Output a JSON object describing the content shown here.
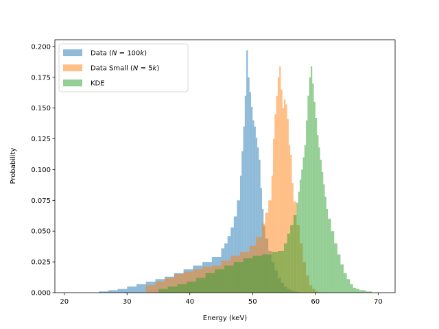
{
  "chart_data": {
    "type": "histogram",
    "xlabel": "Energy (keV)",
    "ylabel": "Probability",
    "xlim": [
      18.5,
      72.7
    ],
    "ylim": [
      0,
      0.2055
    ],
    "xticks": [
      20,
      30,
      40,
      50,
      60,
      70
    ],
    "xtick_labels": [
      "20",
      "30",
      "40",
      "50",
      "60",
      "70"
    ],
    "yticks": [
      0.0,
      0.025,
      0.05,
      0.075,
      0.1,
      0.125,
      0.15,
      0.175,
      0.2
    ],
    "ytick_labels": [
      "0.000",
      "0.025",
      "0.050",
      "0.075",
      "0.100",
      "0.125",
      "0.150",
      "0.175",
      "0.200"
    ],
    "grid": false,
    "legend_position": "upper-left",
    "series": [
      {
        "name": "Data (N = 100k)",
        "name_parts": [
          "Data (",
          "N",
          " = 100",
          "k",
          ")"
        ],
        "color": "#1f77b4",
        "alpha": 0.5,
        "bins": {
          "x": [
            25.5,
            27.0,
            28.5,
            30.0,
            31.5,
            33.0,
            34.5,
            36.0,
            37.5,
            39.0,
            40.5,
            42.0,
            43.5,
            45.0,
            45.5,
            46.0,
            46.5,
            47.0,
            47.5,
            48.0,
            48.25,
            48.5,
            48.75,
            49.0,
            49.25,
            49.5,
            49.75,
            50.0,
            50.25,
            50.5,
            50.75,
            51.0,
            51.25,
            51.5,
            51.75,
            52.0,
            52.5,
            53.0,
            53.5,
            54.0,
            54.5,
            55.0,
            55.5,
            56.0,
            56.5,
            57.0
          ],
          "y": [
            0.001,
            0.002,
            0.003,
            0.005,
            0.007,
            0.009,
            0.011,
            0.013,
            0.016,
            0.019,
            0.022,
            0.025,
            0.029,
            0.036,
            0.04,
            0.046,
            0.053,
            0.062,
            0.075,
            0.095,
            0.115,
            0.135,
            0.16,
            0.197,
            0.175,
            0.163,
            0.151,
            0.14,
            0.135,
            0.126,
            0.118,
            0.108,
            0.085,
            0.068,
            0.054,
            0.044,
            0.034,
            0.025,
            0.018,
            0.012,
            0.008,
            0.005,
            0.003,
            0.002,
            0.001,
            0.0005
          ]
        }
      },
      {
        "name": "Data Small (N = 5k)",
        "name_parts": [
          "Data Small (",
          "N",
          " = 5",
          "k",
          ")"
        ],
        "color": "#ff7f0e",
        "alpha": 0.5,
        "bins": {
          "x": [
            33.0,
            34.5,
            36.0,
            37.5,
            39.0,
            40.5,
            42.0,
            43.5,
            45.0,
            46.5,
            48.0,
            49.5,
            50.5,
            51.5,
            52.0,
            52.5,
            53.0,
            53.25,
            53.5,
            53.75,
            54.0,
            54.25,
            54.5,
            54.75,
            55.0,
            55.25,
            55.5,
            55.75,
            56.0,
            56.25,
            56.5,
            57.0,
            57.5,
            58.0,
            58.5,
            59.0,
            59.5,
            60.0
          ],
          "y": [
            0.006,
            0.009,
            0.012,
            0.015,
            0.017,
            0.019,
            0.021,
            0.022,
            0.026,
            0.03,
            0.033,
            0.038,
            0.045,
            0.056,
            0.065,
            0.075,
            0.095,
            0.125,
            0.145,
            0.16,
            0.175,
            0.184,
            0.165,
            0.15,
            0.157,
            0.153,
            0.141,
            0.12,
            0.112,
            0.089,
            0.074,
            0.055,
            0.04,
            0.025,
            0.014,
            0.006,
            0.003,
            0.001
          ]
        }
      },
      {
        "name": "KDE",
        "name_parts": [
          "KDE"
        ],
        "color": "#2ca02c",
        "alpha": 0.5,
        "bins": {
          "x": [
            35.0,
            36.5,
            38.0,
            39.5,
            41.0,
            42.5,
            44.0,
            45.5,
            47.0,
            48.5,
            50.0,
            51.5,
            53.0,
            54.0,
            55.0,
            55.5,
            56.0,
            56.5,
            57.0,
            57.25,
            57.5,
            57.75,
            58.0,
            58.25,
            58.5,
            58.75,
            59.0,
            59.25,
            59.5,
            59.75,
            60.0,
            60.25,
            60.5,
            60.75,
            61.0,
            61.25,
            61.5,
            61.75,
            62.0,
            62.5,
            63.0,
            63.5,
            64.0,
            64.5,
            65.0,
            65.5,
            66.0,
            66.5,
            67.0,
            68.0
          ],
          "y": [
            0.003,
            0.005,
            0.007,
            0.009,
            0.012,
            0.016,
            0.019,
            0.022,
            0.025,
            0.028,
            0.03,
            0.031,
            0.033,
            0.034,
            0.04,
            0.048,
            0.055,
            0.063,
            0.073,
            0.082,
            0.092,
            0.1,
            0.11,
            0.12,
            0.14,
            0.16,
            0.175,
            0.184,
            0.17,
            0.155,
            0.142,
            0.128,
            0.118,
            0.108,
            0.098,
            0.088,
            0.078,
            0.068,
            0.06,
            0.05,
            0.04,
            0.031,
            0.023,
            0.016,
            0.011,
            0.007,
            0.004,
            0.003,
            0.002,
            0.001
          ]
        }
      }
    ]
  }
}
